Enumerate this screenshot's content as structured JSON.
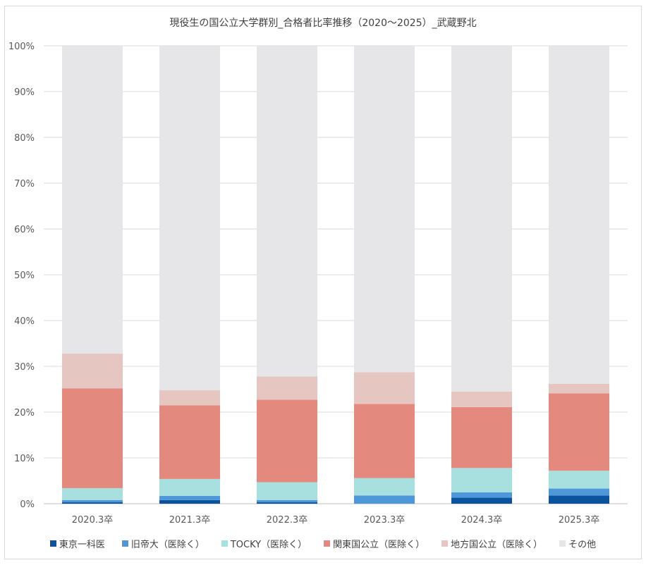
{
  "chart_data": {
    "type": "bar",
    "stacked": true,
    "title": "現役生の国公立大学群別_合格者比率推移（2020～2025）_武蔵野北",
    "categories": [
      "2020.3卒",
      "2021.3卒",
      "2022.3卒",
      "2023.3卒",
      "2024.3卒",
      "2025.3卒"
    ],
    "y_ticks": [
      "0%",
      "10%",
      "20%",
      "30%",
      "40%",
      "50%",
      "60%",
      "70%",
      "80%",
      "90%",
      "100%"
    ],
    "ylim": [
      0,
      100
    ],
    "y_unit": "%",
    "grid": true,
    "legend_position": "bottom",
    "series": [
      {
        "name": "東京一科医",
        "color": "#0b539c",
        "values": [
          0.3,
          0.8,
          0.3,
          0.0,
          1.3,
          1.8
        ]
      },
      {
        "name": "旧帝大（医除く）",
        "color": "#4e97d8",
        "values": [
          0.5,
          0.9,
          0.5,
          1.8,
          1.2,
          1.5
        ]
      },
      {
        "name": "TOCKY（医除く）",
        "color": "#a8dfdf",
        "values": [
          2.6,
          3.7,
          3.9,
          3.8,
          5.3,
          3.9
        ]
      },
      {
        "name": "関東国公立（医除く）",
        "color": "#e3897d",
        "values": [
          21.8,
          16.1,
          18.0,
          16.2,
          13.3,
          16.9
        ]
      },
      {
        "name": "地方国公立（医除く）",
        "color": "#e5c6c1",
        "values": [
          7.6,
          3.3,
          5.1,
          6.9,
          3.4,
          2.1
        ]
      },
      {
        "name": "その他",
        "color": "#e6e6e8",
        "values": [
          67.2,
          75.2,
          72.2,
          71.3,
          75.5,
          73.8
        ]
      }
    ]
  }
}
